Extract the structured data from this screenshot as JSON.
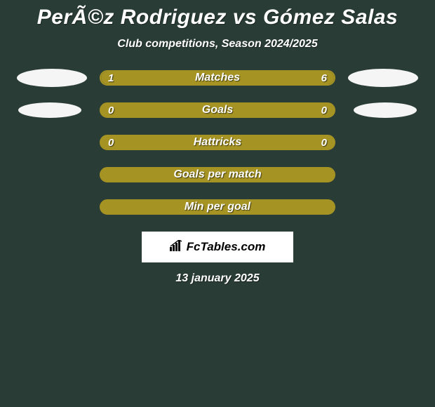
{
  "title": "PerÃ©z Rodriguez vs Gómez Salas",
  "subtitle": "Club competitions, Season 2024/2025",
  "colors": {
    "background": "#2a3c36",
    "bar_border": "#a59323",
    "fill_left": "#a59323",
    "fill_right": "#a59323",
    "text": "#ffffff",
    "logo_bg": "#ffffff",
    "logo_text": "#000000"
  },
  "bars": [
    {
      "label": "Matches",
      "left_val": "1",
      "right_val": "6",
      "left_pct": 18,
      "right_pct": 82,
      "show_ovals": true,
      "oval_small": false
    },
    {
      "label": "Goals",
      "left_val": "0",
      "right_val": "0",
      "left_pct": 0,
      "right_pct": 0,
      "full_fill": true,
      "show_ovals": true,
      "oval_small": true
    },
    {
      "label": "Hattricks",
      "left_val": "0",
      "right_val": "0",
      "left_pct": 0,
      "right_pct": 0,
      "full_fill": true,
      "show_ovals": false
    },
    {
      "label": "Goals per match",
      "left_val": "",
      "right_val": "",
      "left_pct": 0,
      "right_pct": 0,
      "full_fill": true,
      "show_ovals": false
    },
    {
      "label": "Min per goal",
      "left_val": "",
      "right_val": "",
      "left_pct": 0,
      "right_pct": 0,
      "full_fill": true,
      "show_ovals": false
    }
  ],
  "logo": "FcTables.com",
  "date": "13 january 2025",
  "typography": {
    "title_fontsize": 30,
    "subtitle_fontsize": 16,
    "label_fontsize": 16,
    "value_fontsize": 15
  }
}
